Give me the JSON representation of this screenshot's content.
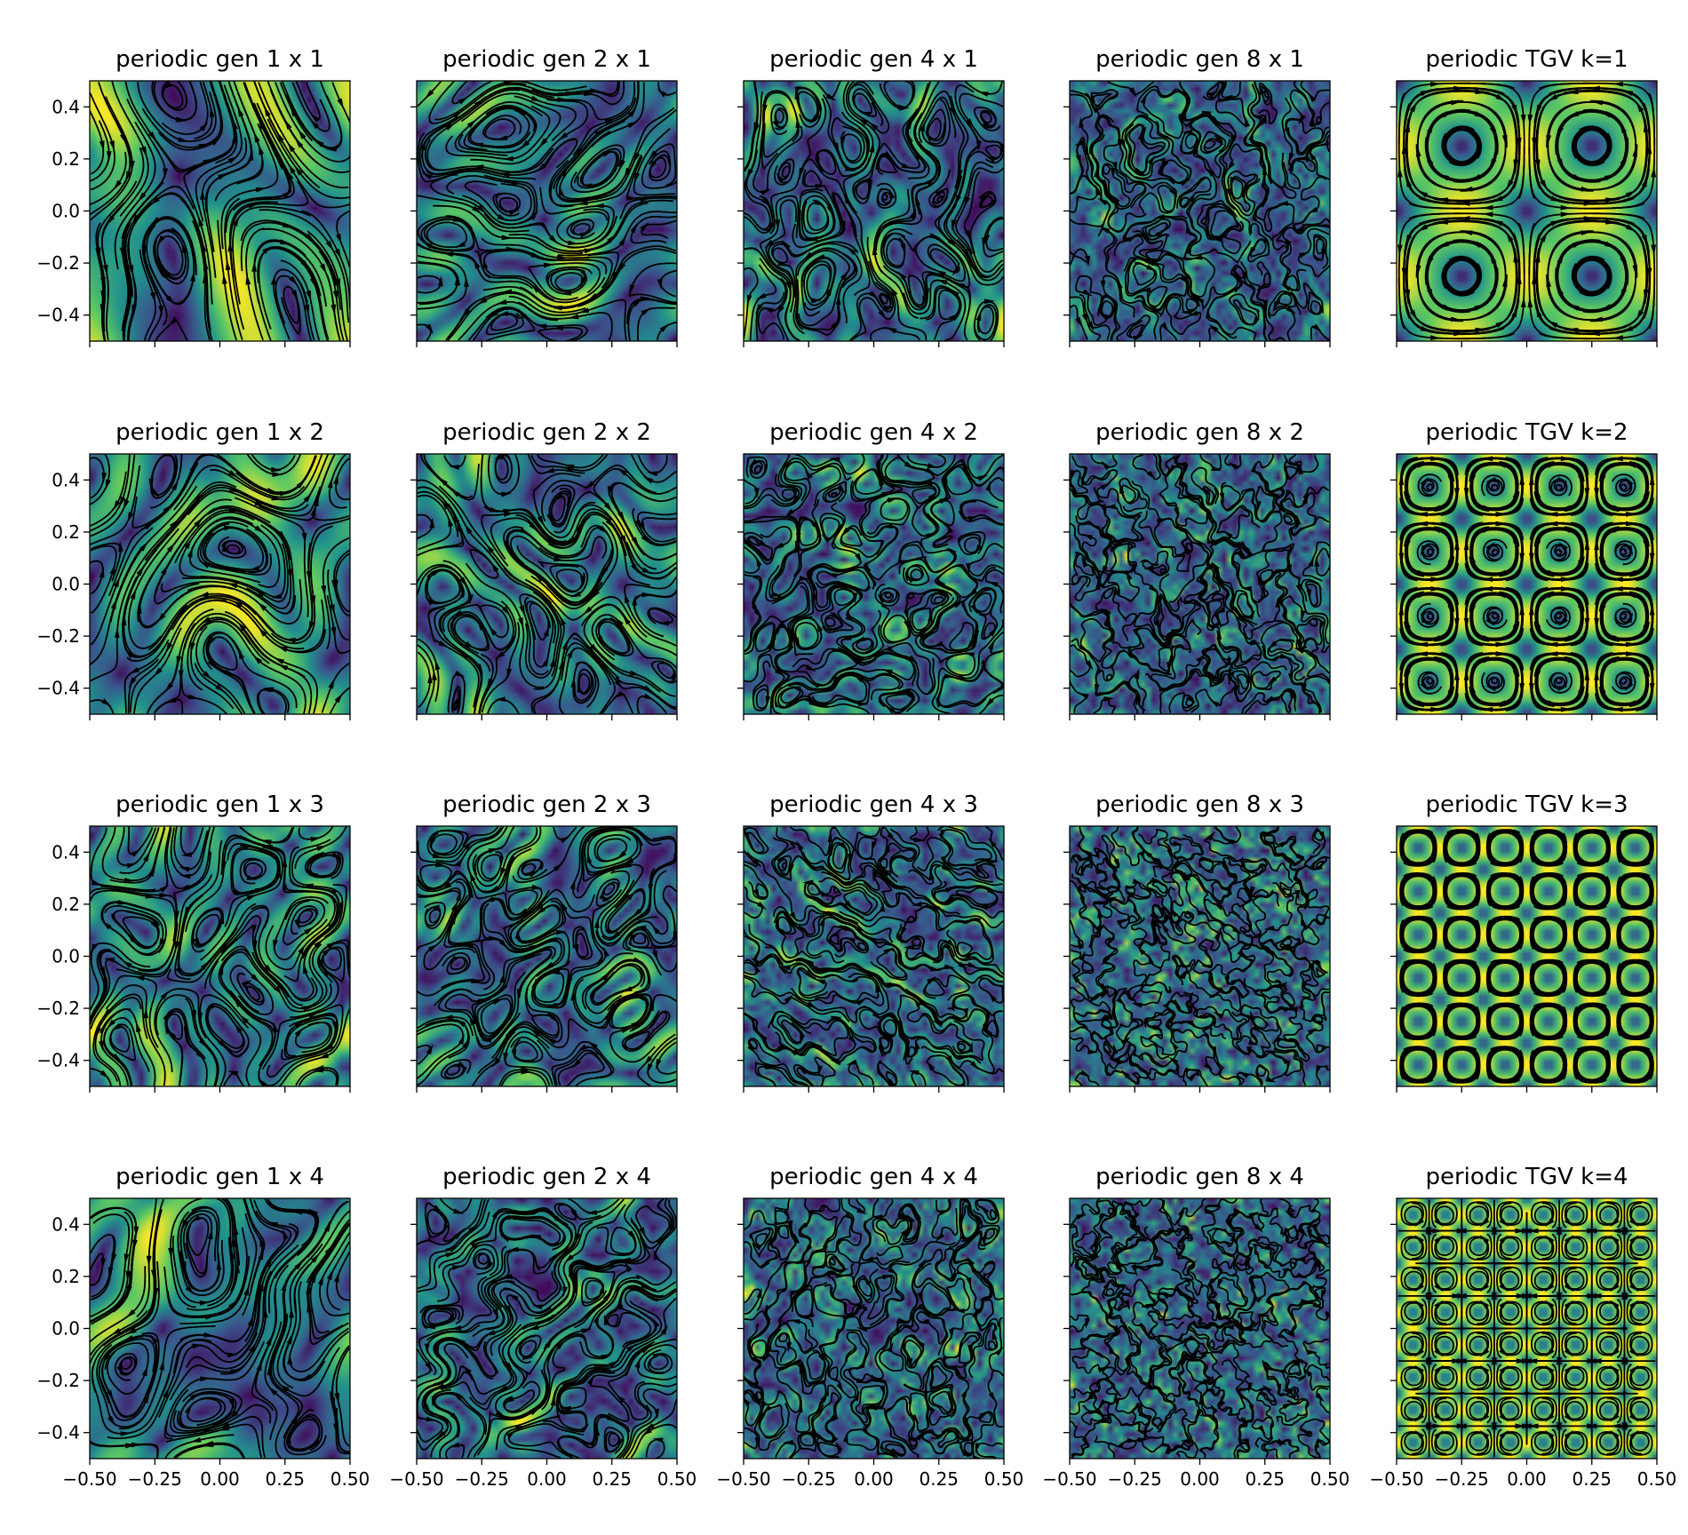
{
  "figure": {
    "background": "#ffffff"
  },
  "colormap": {
    "name": "viridis",
    "stops": [
      "#440154",
      "#3b528b",
      "#21918c",
      "#5ec962",
      "#fde725"
    ]
  },
  "streamline_color": "#000000",
  "chart_data": {
    "type": "streamplot-grid",
    "rows": 4,
    "cols": 5,
    "xlim": [
      -0.5,
      0.5
    ],
    "ylim": [
      -0.5,
      0.5
    ],
    "x_ticks": [
      -0.5,
      -0.25,
      0.0,
      0.25,
      0.5
    ],
    "x_tick_labels": [
      "−0.50",
      "−0.25",
      "0.00",
      "0.25",
      "0.50"
    ],
    "y_ticks": [
      0.4,
      0.2,
      0.0,
      -0.2,
      -0.4
    ],
    "y_tick_labels": [
      "0.4",
      "0.2",
      "0.0",
      "−0.2",
      "−0.4"
    ],
    "panels": [
      {
        "title": "periodic gen 1 x 1",
        "kind": "gen",
        "gen": 1,
        "rep": 1
      },
      {
        "title": "periodic gen 2 x 1",
        "kind": "gen",
        "gen": 2,
        "rep": 1
      },
      {
        "title": "periodic gen 4 x 1",
        "kind": "gen",
        "gen": 4,
        "rep": 1
      },
      {
        "title": "periodic gen 8 x 1",
        "kind": "gen",
        "gen": 8,
        "rep": 1
      },
      {
        "title": "periodic TGV k=1",
        "kind": "tgv",
        "k": 1
      },
      {
        "title": "periodic gen 1 x 2",
        "kind": "gen",
        "gen": 1,
        "rep": 2
      },
      {
        "title": "periodic gen 2 x 2",
        "kind": "gen",
        "gen": 2,
        "rep": 2
      },
      {
        "title": "periodic gen 4 x 2",
        "kind": "gen",
        "gen": 4,
        "rep": 2
      },
      {
        "title": "periodic gen 8 x 2",
        "kind": "gen",
        "gen": 8,
        "rep": 2
      },
      {
        "title": "periodic TGV k=2",
        "kind": "tgv",
        "k": 2
      },
      {
        "title": "periodic gen 1 x 3",
        "kind": "gen",
        "gen": 1,
        "rep": 3
      },
      {
        "title": "periodic gen 2 x 3",
        "kind": "gen",
        "gen": 2,
        "rep": 3
      },
      {
        "title": "periodic gen 4 x 3",
        "kind": "gen",
        "gen": 4,
        "rep": 3
      },
      {
        "title": "periodic gen 8 x 3",
        "kind": "gen",
        "gen": 8,
        "rep": 3
      },
      {
        "title": "periodic TGV k=3",
        "kind": "tgv",
        "k": 3
      },
      {
        "title": "periodic gen 1 x 4",
        "kind": "gen",
        "gen": 1,
        "rep": 4
      },
      {
        "title": "periodic gen 2 x 4",
        "kind": "gen",
        "gen": 2,
        "rep": 4
      },
      {
        "title": "periodic gen 4 x 4",
        "kind": "gen",
        "gen": 4,
        "rep": 4
      },
      {
        "title": "periodic gen 8 x 4",
        "kind": "gen",
        "gen": 8,
        "rep": 4
      },
      {
        "title": "periodic TGV k=4",
        "kind": "tgv",
        "k": 4
      }
    ]
  }
}
